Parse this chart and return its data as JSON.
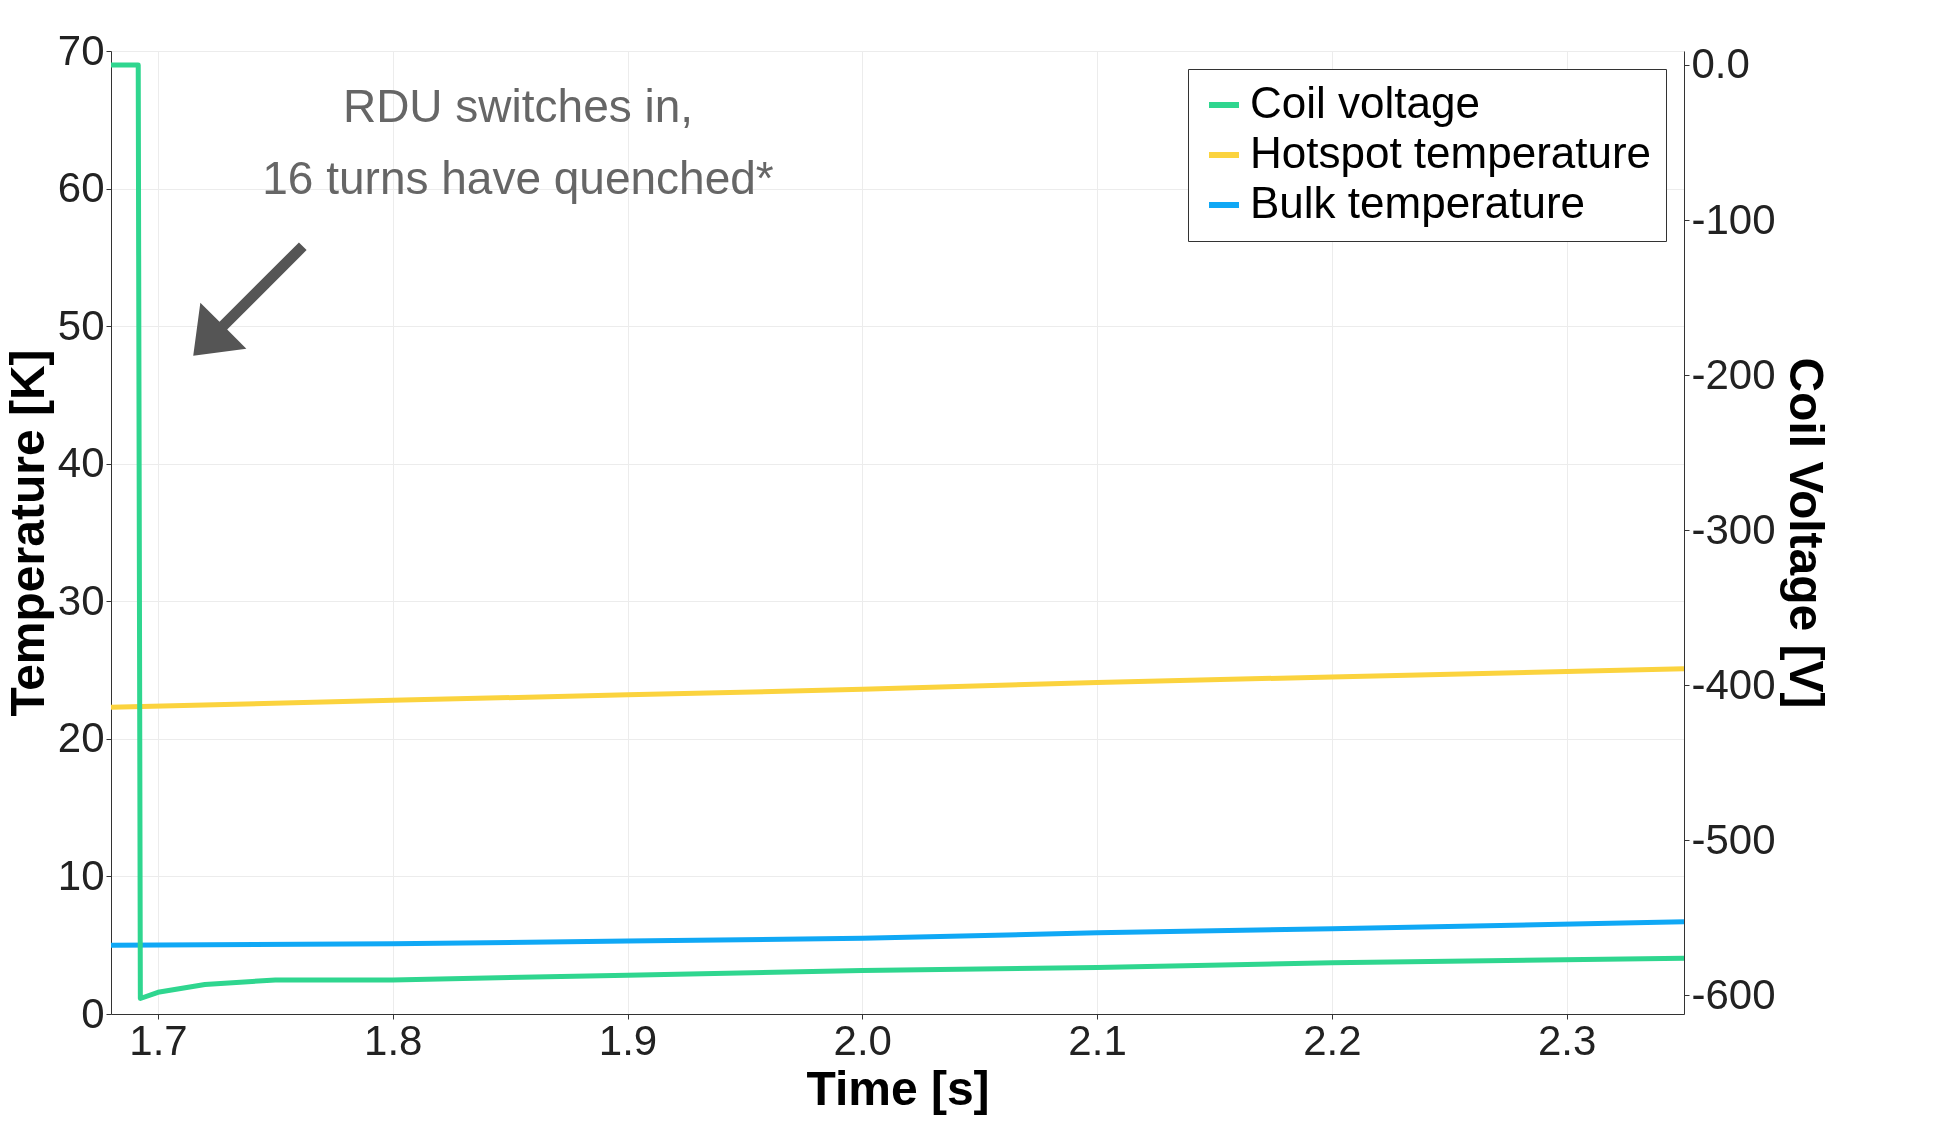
{
  "chart_data": {
    "type": "line",
    "xlabel": "Time [s]",
    "ylabel": "Temperature [K]",
    "y2label": "Coil Voltage [V]",
    "xlim": [
      1.68,
      2.35
    ],
    "xticks": [
      1.7,
      1.8,
      1.9,
      {
        "value": 2.0,
        "label": "2.0"
      },
      2.1,
      2.2,
      2.3
    ],
    "ylim": [
      0,
      70
    ],
    "yticks": [
      0,
      10,
      20,
      30,
      40,
      50,
      60,
      70
    ],
    "y2lim": [
      -612,
      9
    ],
    "y2ticks": [
      {
        "value": 0,
        "label": "0.0"
      },
      -100,
      -200,
      -300,
      -400,
      -500,
      -600
    ],
    "grid": true,
    "legend": "top right",
    "line_style": "solid",
    "marker": "none",
    "annotations": [
      "RDU switches in,\n16 turns have quenched*"
    ],
    "series": [
      {
        "name": "Coil voltage",
        "color": "#2fd68f",
        "axis": "y2",
        "x": [
          1.68,
          1.6916,
          1.6925,
          1.7,
          1.72,
          1.75,
          1.8,
          1.9,
          2.0,
          2.1,
          2.2,
          2.35
        ],
        "values": [
          0,
          0,
          -602,
          -598,
          -593,
          -590,
          -590,
          -587,
          -584,
          -582,
          -579,
          -576
        ]
      },
      {
        "name": "Hotspot temperature",
        "color": "#fbd33e",
        "x": [
          1.68,
          1.8,
          1.9,
          2.0,
          2.1,
          2.2,
          2.35
        ],
        "values": [
          22.3,
          22.8,
          23.2,
          23.6,
          24.1,
          24.5,
          25.1
        ]
      },
      {
        "name": "Bulk temperature",
        "color": "#10a8f5",
        "x": [
          1.68,
          1.8,
          1.9,
          2.0,
          2.1,
          2.2,
          2.35
        ],
        "values": [
          5.0,
          5.1,
          5.3,
          5.5,
          5.9,
          6.2,
          6.7
        ]
      }
    ]
  }
}
